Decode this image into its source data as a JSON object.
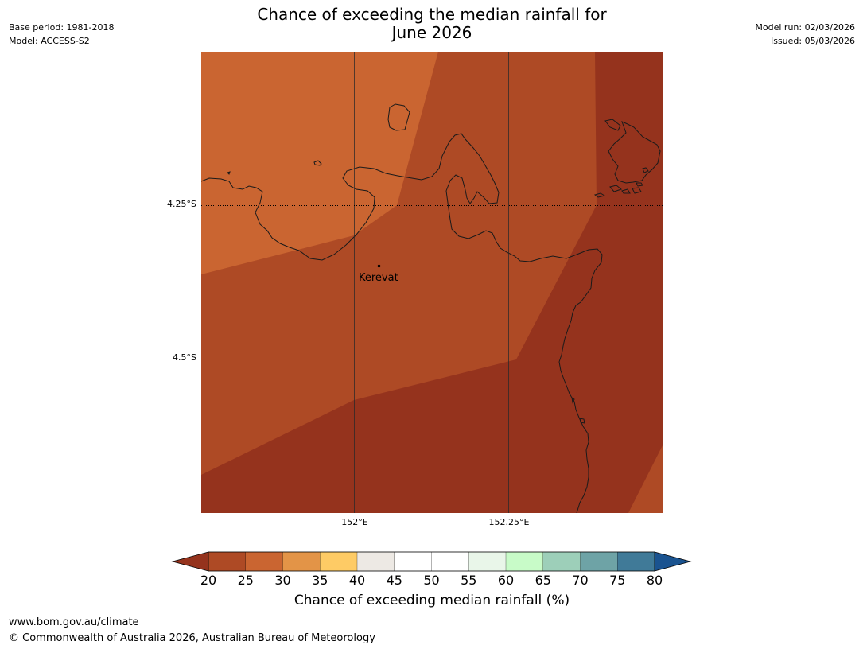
{
  "title": {
    "line1": "Chance of exceeding the median rainfall for",
    "line2": "June 2026"
  },
  "meta_left": {
    "base_period": "Base period: 1981-2018",
    "model": "Model: ACCESS-S2"
  },
  "meta_right": {
    "model_run": "Model run: 02/03/2026",
    "issued": "Issued: 05/03/2026"
  },
  "map": {
    "lat_labels": [
      "4.25°S",
      "4.5°S"
    ],
    "lon_labels": [
      "152°E",
      "152.25°E"
    ],
    "places": [
      {
        "name": "Kerevat"
      }
    ],
    "region_colors": {
      "band_25_30": "#ca6531",
      "band_20_25": "#ae4a25",
      "band_below_20": "#95331d"
    }
  },
  "colorbar": {
    "title": "Chance of exceeding median rainfall (%)",
    "ticks": [
      "20",
      "25",
      "30",
      "35",
      "40",
      "45",
      "50",
      "55",
      "60",
      "65",
      "70",
      "75",
      "80"
    ],
    "under_color": "#95331d",
    "over_color": "#1a5390",
    "bins": [
      {
        "range": "20-25",
        "color": "#ae4a25"
      },
      {
        "range": "25-30",
        "color": "#ca6531"
      },
      {
        "range": "30-35",
        "color": "#e39447"
      },
      {
        "range": "35-40",
        "color": "#fecb65"
      },
      {
        "range": "40-45",
        "color": "#ede9e4"
      },
      {
        "range": "45-50",
        "color": "#ffffff"
      },
      {
        "range": "50-55",
        "color": "#ffffff"
      },
      {
        "range": "55-60",
        "color": "#e9f6e9"
      },
      {
        "range": "60-65",
        "color": "#c8fbc8"
      },
      {
        "range": "65-70",
        "color": "#9dcfb9"
      },
      {
        "range": "70-75",
        "color": "#6ea3a6"
      },
      {
        "range": "75-80",
        "color": "#407a98"
      }
    ]
  },
  "footer": {
    "url": "www.bom.gov.au/climate",
    "copyright": "© Commonwealth of Australia 2026, Australian Bureau of Meteorology"
  }
}
